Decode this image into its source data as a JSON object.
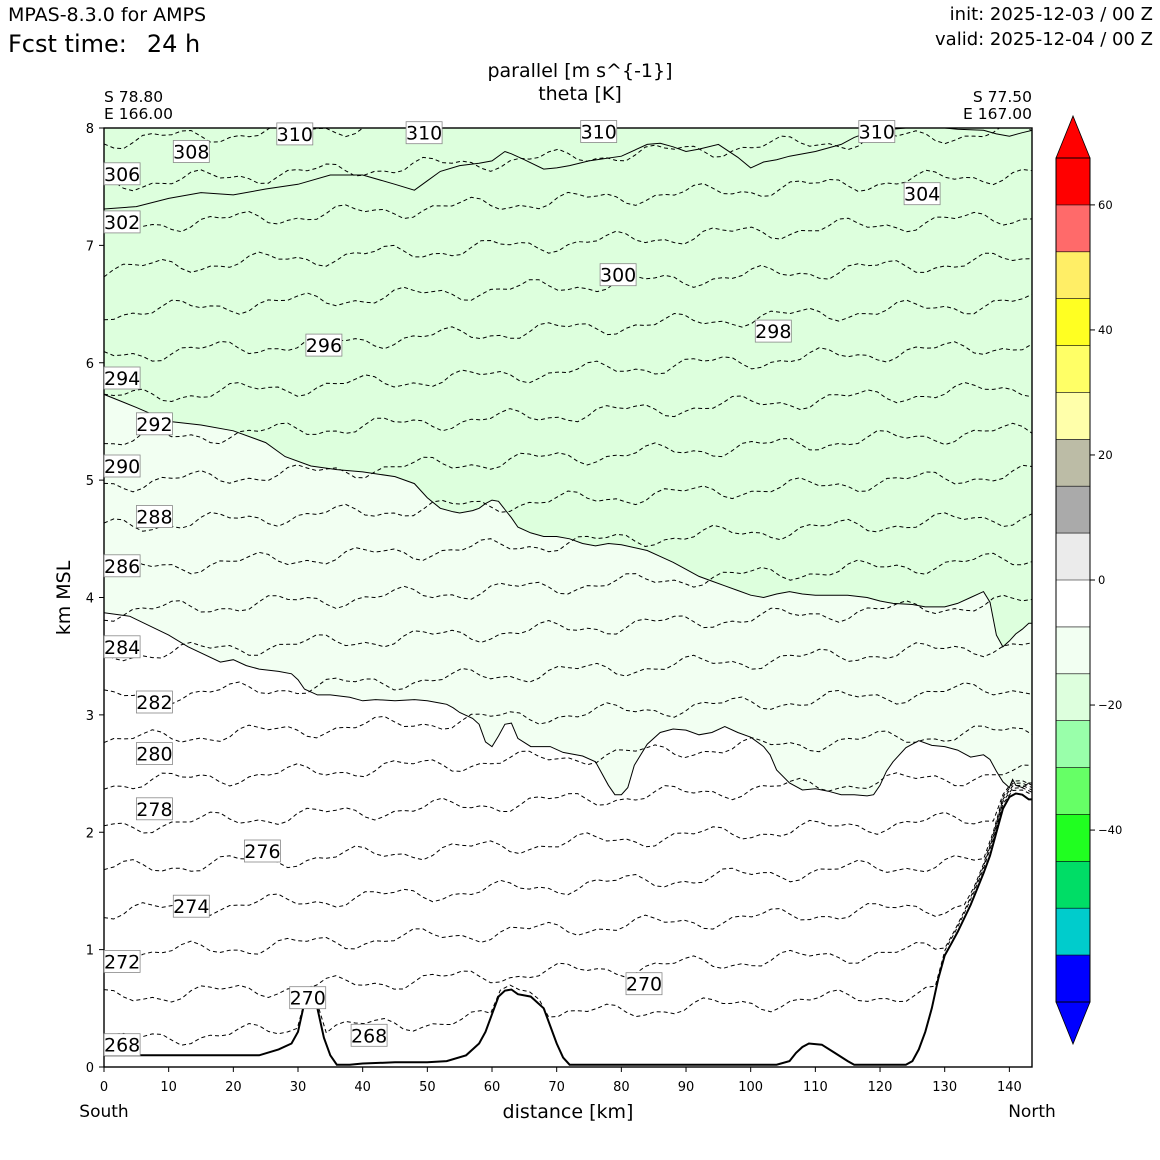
{
  "header": {
    "app_title": "MPAS-8.3.0 for AMPS",
    "fcst_label": "Fcst time:",
    "fcst_value": "24 h",
    "init": "init: 2025-12-03 / 00 Z",
    "valid": "valid: 2025-12-04 / 00 Z"
  },
  "plot_title": {
    "line1": "parallel [m s^{-1}]",
    "line2": "theta [K]"
  },
  "endpoints": {
    "left_lat": "S 78.80",
    "left_lon": "E 166.00",
    "right_lat": "S 77.50",
    "right_lon": "E 167.00"
  },
  "direction": {
    "left": "South",
    "right": "North"
  },
  "chart_data": {
    "type": "cross-section contour",
    "title": "parallel [m s^{-1}] / theta [K]",
    "xlabel": "distance [km]",
    "ylabel": "km MSL",
    "xlim": [
      0,
      143.5
    ],
    "ylim": [
      0,
      8
    ],
    "x_ticks": [
      0,
      10,
      20,
      30,
      40,
      50,
      60,
      70,
      80,
      90,
      100,
      110,
      120,
      130,
      140
    ],
    "y_ticks": [
      0,
      1,
      2,
      3,
      4,
      5,
      6,
      7,
      8
    ],
    "theta_contour_levels": [
      268,
      270,
      272,
      274,
      276,
      278,
      280,
      282,
      284,
      286,
      288,
      290,
      292,
      294,
      296,
      298,
      300,
      302,
      304,
      306,
      308,
      310
    ],
    "theta_labels": [
      {
        "text": "310",
        "x": 29.5,
        "y": 7.95
      },
      {
        "text": "310",
        "x": 49.5,
        "y": 7.96
      },
      {
        "text": "310",
        "x": 76.5,
        "y": 7.97
      },
      {
        "text": "310",
        "x": 119.5,
        "y": 7.97
      },
      {
        "text": "308",
        "x": 13.5,
        "y": 7.8
      },
      {
        "text": "306",
        "x": 2.8,
        "y": 7.61
      },
      {
        "text": "304",
        "x": 126.5,
        "y": 7.44
      },
      {
        "text": "302",
        "x": 2.8,
        "y": 7.2
      },
      {
        "text": "300",
        "x": 79.5,
        "y": 6.75
      },
      {
        "text": "298",
        "x": 103.5,
        "y": 6.27
      },
      {
        "text": "296",
        "x": 34,
        "y": 6.15
      },
      {
        "text": "294",
        "x": 2.8,
        "y": 5.87
      },
      {
        "text": "292",
        "x": 7.8,
        "y": 5.48
      },
      {
        "text": "290",
        "x": 2.8,
        "y": 5.12
      },
      {
        "text": "288",
        "x": 7.8,
        "y": 4.69
      },
      {
        "text": "286",
        "x": 2.8,
        "y": 4.27
      },
      {
        "text": "284",
        "x": 2.8,
        "y": 3.58
      },
      {
        "text": "282",
        "x": 7.8,
        "y": 3.11
      },
      {
        "text": "280",
        "x": 7.8,
        "y": 2.67
      },
      {
        "text": "278",
        "x": 7.8,
        "y": 2.2
      },
      {
        "text": "276",
        "x": 24.5,
        "y": 1.84
      },
      {
        "text": "274",
        "x": 13.5,
        "y": 1.37
      },
      {
        "text": "272",
        "x": 2.8,
        "y": 0.9
      },
      {
        "text": "270",
        "x": 31.5,
        "y": 0.59
      },
      {
        "text": "270",
        "x": 83.5,
        "y": 0.71
      },
      {
        "text": "268",
        "x": 41,
        "y": 0.27
      },
      {
        "text": "268",
        "x": 2.8,
        "y": 0.19
      }
    ],
    "terrain_profile": {
      "x": [
        0,
        10,
        20,
        24,
        27,
        29,
        30,
        31,
        32,
        33,
        34,
        35,
        36,
        37,
        38,
        40,
        45,
        50,
        53,
        56,
        58,
        59,
        60,
        61,
        62,
        63,
        64,
        66,
        68,
        69,
        70,
        71,
        72,
        73,
        75,
        80,
        90,
        100,
        104,
        106,
        107,
        108,
        109,
        111,
        113,
        115,
        116,
        118,
        120,
        124,
        125,
        126,
        127,
        128,
        129,
        130,
        131,
        132,
        134,
        136,
        137,
        138,
        139,
        140,
        141,
        142,
        143,
        143.5
      ],
      "y": [
        0.1,
        0.1,
        0.1,
        0.1,
        0.15,
        0.2,
        0.3,
        0.55,
        0.67,
        0.5,
        0.25,
        0.1,
        0.02,
        0.02,
        0.02,
        0.03,
        0.04,
        0.04,
        0.05,
        0.1,
        0.2,
        0.3,
        0.45,
        0.6,
        0.65,
        0.66,
        0.62,
        0.6,
        0.5,
        0.35,
        0.2,
        0.08,
        0.02,
        0.02,
        0.02,
        0.02,
        0.02,
        0.02,
        0.02,
        0.05,
        0.12,
        0.17,
        0.2,
        0.19,
        0.12,
        0.05,
        0.02,
        0.02,
        0.02,
        0.02,
        0.05,
        0.15,
        0.3,
        0.5,
        0.75,
        0.95,
        1.05,
        1.15,
        1.38,
        1.65,
        1.8,
        2.0,
        2.2,
        2.3,
        2.33,
        2.32,
        2.28,
        2.28
      ]
    },
    "parallel_zero_contour": {
      "x": [
        0,
        4,
        10,
        13,
        18,
        20,
        22,
        24,
        27,
        29,
        30,
        31,
        33,
        35,
        38,
        40,
        42,
        45,
        48,
        50,
        52,
        53,
        54,
        55,
        57,
        58,
        59,
        60,
        61,
        62,
        63,
        64,
        66,
        69,
        71,
        74,
        76,
        78,
        79,
        80,
        81,
        82,
        84,
        86,
        88,
        90,
        92,
        94,
        96,
        98,
        100,
        102,
        103,
        104,
        106,
        108,
        110,
        112,
        114,
        116,
        118,
        119,
        120,
        121,
        122,
        124,
        126,
        128,
        130,
        132,
        134,
        136,
        137,
        138,
        139,
        140,
        140.5,
        141,
        142,
        143,
        143.5
      ],
      "y": [
        3.87,
        3.84,
        3.68,
        3.58,
        3.45,
        3.47,
        3.42,
        3.39,
        3.37,
        3.35,
        3.3,
        3.22,
        3.17,
        3.17,
        3.15,
        3.12,
        3.13,
        3.12,
        3.13,
        3.12,
        3.1,
        3.09,
        3.06,
        3.02,
        2.97,
        2.92,
        2.77,
        2.73,
        2.82,
        2.92,
        2.93,
        2.8,
        2.73,
        2.73,
        2.68,
        2.65,
        2.6,
        2.4,
        2.32,
        2.32,
        2.38,
        2.57,
        2.75,
        2.85,
        2.88,
        2.87,
        2.83,
        2.85,
        2.9,
        2.85,
        2.81,
        2.73,
        2.66,
        2.53,
        2.42,
        2.36,
        2.37,
        2.35,
        2.32,
        2.32,
        2.31,
        2.32,
        2.4,
        2.52,
        2.6,
        2.72,
        2.78,
        2.74,
        2.73,
        2.7,
        2.64,
        2.66,
        2.62,
        2.52,
        2.43,
        2.38,
        2.45,
        2.4,
        2.38,
        2.42,
        2.42
      ]
    },
    "parallel_neg4_contour": {
      "x": [
        0,
        5,
        10,
        15,
        20,
        25,
        28,
        32,
        36,
        40,
        45,
        48,
        50,
        52,
        54,
        55,
        57,
        58,
        59,
        60,
        61,
        62,
        63,
        64,
        66,
        68,
        70,
        72,
        74,
        76,
        78,
        80,
        84,
        86,
        88,
        90,
        92,
        94,
        96,
        98,
        100,
        102,
        104,
        106,
        108,
        110,
        112,
        115,
        118,
        120,
        122,
        125,
        127,
        128,
        130,
        132,
        134,
        136,
        137,
        138,
        139,
        140,
        141,
        142,
        143,
        143.5
      ],
      "y": [
        5.73,
        5.62,
        5.5,
        5.47,
        5.42,
        5.32,
        5.2,
        5.12,
        5.09,
        5.07,
        5.03,
        4.97,
        4.85,
        4.76,
        4.73,
        4.72,
        4.74,
        4.76,
        4.8,
        4.83,
        4.82,
        4.75,
        4.68,
        4.6,
        4.55,
        4.52,
        4.52,
        4.5,
        4.46,
        4.44,
        4.46,
        4.45,
        4.4,
        4.35,
        4.3,
        4.24,
        4.18,
        4.14,
        4.1,
        4.06,
        4.02,
        4.0,
        4.03,
        4.05,
        4.03,
        4.02,
        4.02,
        4.02,
        4.0,
        3.97,
        3.95,
        3.94,
        3.92,
        3.92,
        3.92,
        3.95,
        4.0,
        4.05,
        3.96,
        3.68,
        3.58,
        3.63,
        3.69,
        3.73,
        3.78,
        3.78
      ]
    },
    "parallel_neg8_contour": {
      "x": [
        0,
        5,
        10,
        15,
        20,
        25,
        30,
        35,
        40,
        45,
        48,
        50,
        52,
        55,
        58,
        60,
        62,
        63,
        65,
        68,
        70,
        72,
        75,
        80,
        84,
        86,
        88,
        90,
        92,
        95,
        98,
        100,
        102,
        104,
        106,
        110,
        114,
        116,
        118,
        120,
        124,
        128,
        130,
        132,
        136,
        138,
        140,
        142,
        143.5
      ],
      "y": [
        7.31,
        7.33,
        7.4,
        7.45,
        7.43,
        7.48,
        7.52,
        7.6,
        7.6,
        7.52,
        7.47,
        7.55,
        7.63,
        7.68,
        7.7,
        7.72,
        7.8,
        7.78,
        7.73,
        7.65,
        7.66,
        7.68,
        7.72,
        7.76,
        7.86,
        7.87,
        7.84,
        7.8,
        7.82,
        7.86,
        7.75,
        7.66,
        7.71,
        7.73,
        7.76,
        7.8,
        7.86,
        7.92,
        7.96,
        7.98,
        8.0,
        8.0,
        8.0,
        7.99,
        7.98,
        7.95,
        7.93,
        7.96,
        7.98
      ]
    },
    "colorbar": {
      "variable": "parallel [m s^{-1}]",
      "levels": [
        -60,
        -52,
        -44,
        -36,
        -28,
        -20,
        -12,
        -4,
        4,
        12,
        20,
        28,
        36,
        44,
        52,
        60
      ],
      "colors": [
        "#0000ff",
        "#00cccc",
        "#00dd66",
        "#20ff20",
        "#66ff66",
        "#99ffaa",
        "#ddffdd",
        "#f2fff2",
        "#ffffff",
        "#ebebeb",
        "#aaaaaa",
        "#bcbca6",
        "#ffffaa",
        "#ffff66",
        "#ffff22",
        "#ffee66",
        "#ff6a6a",
        "#ff0000"
      ],
      "extend_under": "#0000ff",
      "extend_over": "#ff0000",
      "ticks": [
        60,
        40,
        20,
        0,
        -20,
        -40
      ],
      "tick_labels": [
        "60",
        "40",
        "20",
        "0",
        "−20",
        "−40"
      ]
    }
  }
}
